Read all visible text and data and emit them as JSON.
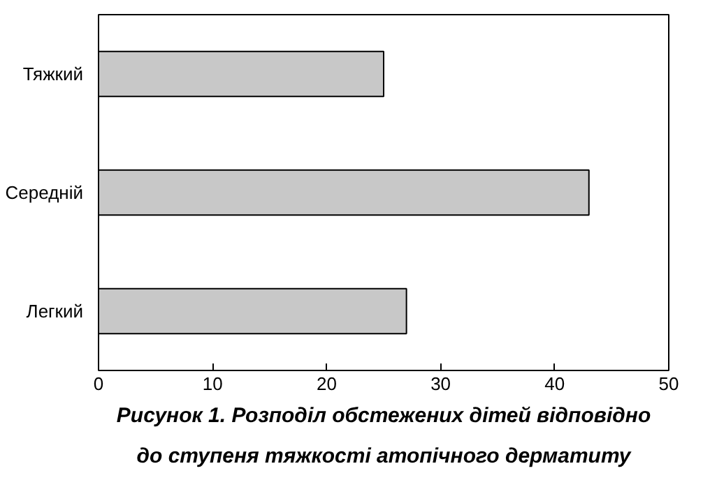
{
  "chart_data": {
    "type": "bar",
    "orientation": "horizontal",
    "categories": [
      "Тяжкий",
      "Середній",
      "Легкий"
    ],
    "values": [
      25,
      43,
      27
    ],
    "color": "#c8c8c8",
    "xlim": [
      0,
      50
    ],
    "xticks": [
      0,
      10,
      20,
      30,
      40,
      50
    ],
    "grid": false,
    "annotations": [
      "Рисунок 1. Розподіл обстежених дітей відповідно",
      "до ступеня тяжкості атопічного дерматиту"
    ]
  }
}
